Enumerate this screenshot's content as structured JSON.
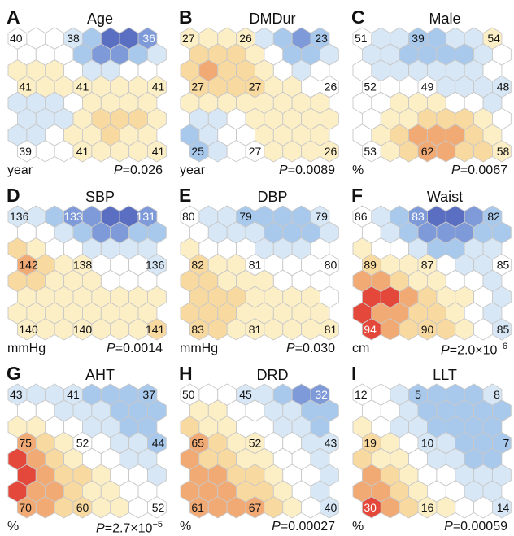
{
  "chart_data": [
    {
      "type": "heatmap",
      "panel": "A",
      "title": "Age",
      "unit": "year",
      "p_prefix": "P",
      "p_value": "=0.026",
      "labels": {
        "tl": "40",
        "tm": "38",
        "tr": "36",
        "ml": "41",
        "mm": "41",
        "mr": "41",
        "bl": "39",
        "bm": "41",
        "br": "41"
      },
      "grid": [
        [
          0,
          0,
          0,
          -1,
          -2,
          -4,
          -4,
          -3
        ],
        [
          0,
          0,
          0,
          -2,
          -3,
          -3,
          -2,
          -1
        ],
        [
          1,
          1,
          1,
          0,
          -1,
          -1,
          0,
          0
        ],
        [
          1,
          1,
          1,
          1,
          1,
          1,
          1,
          1
        ],
        [
          -1,
          -1,
          -1,
          0,
          1,
          1,
          1,
          1
        ],
        [
          -1,
          -1,
          -1,
          1,
          2,
          2,
          2,
          1
        ],
        [
          -1,
          -1,
          0,
          1,
          1,
          2,
          1,
          1
        ],
        [
          0,
          0,
          0,
          1,
          1,
          1,
          1,
          1
        ]
      ]
    },
    {
      "type": "heatmap",
      "panel": "B",
      "title": "DMDur",
      "unit": "year",
      "p_prefix": "P",
      "p_value": "=0.0089",
      "labels": {
        "tl": "27",
        "tm": "26",
        "tr": "23",
        "ml": "27",
        "mm": "27",
        "mr": "26",
        "bl": "25",
        "bm": "27",
        "br": "26"
      },
      "grid": [
        [
          1,
          1,
          1,
          1,
          -1,
          -2,
          -3,
          -2
        ],
        [
          2,
          2,
          2,
          1,
          0,
          -2,
          -2,
          -1
        ],
        [
          2,
          3,
          2,
          2,
          1,
          0,
          -1,
          0
        ],
        [
          2,
          2,
          2,
          2,
          1,
          1,
          0,
          0
        ],
        [
          1,
          1,
          1,
          1,
          1,
          1,
          1,
          1
        ],
        [
          -1,
          -1,
          0,
          1,
          1,
          1,
          1,
          1
        ],
        [
          -2,
          -1,
          0,
          0,
          1,
          1,
          1,
          1
        ],
        [
          -2,
          -1,
          0,
          0,
          1,
          1,
          1,
          1
        ]
      ]
    },
    {
      "type": "heatmap",
      "panel": "C",
      "title": "Male",
      "unit": "%",
      "p_prefix": "P",
      "p_value": "=0.0067",
      "labels": {
        "tl": "51",
        "tm": "39",
        "tr": "54",
        "ml": "52",
        "mm": "49",
        "mr": "48",
        "bl": "53",
        "bm": "62",
        "br": "58"
      },
      "grid": [
        [
          0,
          -1,
          -1,
          -2,
          -2,
          -1,
          -1,
          1
        ],
        [
          -1,
          -1,
          -2,
          -2,
          -2,
          -2,
          -1,
          0
        ],
        [
          0,
          -1,
          -1,
          -1,
          -1,
          -1,
          -1,
          0
        ],
        [
          0,
          0,
          0,
          0,
          -1,
          -1,
          -1,
          -1
        ],
        [
          0,
          0,
          1,
          1,
          1,
          0,
          0,
          -1
        ],
        [
          0,
          1,
          1,
          2,
          2,
          2,
          1,
          0
        ],
        [
          0,
          1,
          2,
          3,
          3,
          3,
          2,
          1
        ],
        [
          0,
          1,
          2,
          3,
          3,
          2,
          2,
          1
        ]
      ]
    },
    {
      "type": "heatmap",
      "panel": "D",
      "title": "SBP",
      "unit": "mmHg",
      "p_prefix": "P",
      "p_value": "=0.0014",
      "labels": {
        "tl": "136",
        "tm": "133",
        "tr": "131",
        "ml": "142",
        "mm": "138",
        "mr": "136",
        "bl": "140",
        "bm": "140",
        "br": "141"
      },
      "grid": [
        [
          -1,
          -1,
          -2,
          -3,
          -3,
          -4,
          -4,
          -3
        ],
        [
          0,
          0,
          -1,
          -2,
          -3,
          -3,
          -2,
          -2
        ],
        [
          2,
          1,
          0,
          0,
          -1,
          -1,
          -1,
          -1
        ],
        [
          3,
          2,
          1,
          1,
          0,
          0,
          0,
          -1
        ],
        [
          2,
          2,
          1,
          1,
          1,
          0,
          0,
          0
        ],
        [
          1,
          1,
          1,
          1,
          1,
          1,
          1,
          1
        ],
        [
          1,
          1,
          1,
          1,
          1,
          1,
          1,
          1
        ],
        [
          1,
          1,
          1,
          1,
          1,
          1,
          1,
          2
        ]
      ]
    },
    {
      "type": "heatmap",
      "panel": "E",
      "title": "DBP",
      "unit": "mmHg",
      "p_prefix": "P",
      "p_value": "=0.030",
      "labels": {
        "tl": "80",
        "tm": "79",
        "tr": "79",
        "ml": "82",
        "mm": "81",
        "mr": "80",
        "bl": "83",
        "bm": "81",
        "br": "81"
      },
      "grid": [
        [
          0,
          -1,
          -1,
          -2,
          -2,
          -2,
          -2,
          -1
        ],
        [
          0,
          -1,
          -1,
          -1,
          -2,
          -2,
          -2,
          -1
        ],
        [
          1,
          0,
          0,
          0,
          -1,
          -1,
          -1,
          0
        ],
        [
          2,
          1,
          1,
          0,
          0,
          0,
          0,
          0
        ],
        [
          2,
          2,
          1,
          1,
          1,
          0,
          0,
          0
        ],
        [
          2,
          2,
          2,
          1,
          1,
          1,
          1,
          0
        ],
        [
          2,
          2,
          2,
          1,
          1,
          1,
          1,
          1
        ],
        [
          2,
          2,
          1,
          1,
          1,
          1,
          1,
          1
        ]
      ]
    },
    {
      "type": "heatmap",
      "panel": "F",
      "title": "Waist",
      "unit": "cm",
      "p_prefix": "P",
      "p_value": "=2.0×10",
      "p_exponent": "−6",
      "labels": {
        "tl": "86",
        "tm": "83",
        "tr": "82",
        "ml": "89",
        "mm": "87",
        "mr": "85",
        "bl": "94",
        "bm": "90",
        "br": "85"
      },
      "grid": [
        [
          0,
          -1,
          -2,
          -3,
          -4,
          -4,
          -3,
          -2
        ],
        [
          0,
          -1,
          -2,
          -3,
          -3,
          -3,
          -2,
          -2
        ],
        [
          1,
          0,
          0,
          -1,
          -2,
          -2,
          -1,
          -1
        ],
        [
          2,
          1,
          1,
          1,
          0,
          -1,
          -1,
          0
        ],
        [
          3,
          3,
          2,
          1,
          1,
          0,
          0,
          -1
        ],
        [
          4,
          4,
          3,
          2,
          1,
          1,
          0,
          -1
        ],
        [
          4,
          3,
          3,
          2,
          2,
          1,
          0,
          -1
        ],
        [
          4,
          3,
          2,
          2,
          2,
          1,
          0,
          -1
        ]
      ]
    },
    {
      "type": "heatmap",
      "panel": "G",
      "title": "AHT",
      "unit": "%",
      "p_prefix": "P",
      "p_value": "=2.7×10",
      "p_exponent": "−5",
      "labels": {
        "tl": "43",
        "tm": "41",
        "tr": "37",
        "ml": "75",
        "mm": "52",
        "mr": "44",
        "bl": "70",
        "bm": "60",
        "br": "52"
      },
      "grid": [
        [
          -1,
          -1,
          -1,
          -1,
          -2,
          -2,
          -2,
          -2
        ],
        [
          0,
          0,
          -1,
          -1,
          -1,
          -2,
          -2,
          -2
        ],
        [
          1,
          1,
          0,
          0,
          -1,
          -1,
          -2,
          -2
        ],
        [
          3,
          2,
          1,
          0,
          0,
          -1,
          -1,
          -2
        ],
        [
          4,
          3,
          2,
          1,
          0,
          0,
          -1,
          -1
        ],
        [
          4,
          3,
          2,
          2,
          1,
          0,
          0,
          -1
        ],
        [
          4,
          3,
          3,
          2,
          1,
          1,
          0,
          0
        ],
        [
          3,
          3,
          2,
          2,
          1,
          1,
          0,
          0
        ]
      ]
    },
    {
      "type": "heatmap",
      "panel": "H",
      "title": "DRD",
      "unit": "%",
      "p_prefix": "P",
      "p_value": "=0.00027",
      "labels": {
        "tl": "50",
        "tm": "45",
        "tr": "32",
        "ml": "65",
        "mm": "52",
        "mr": "43",
        "bl": "61",
        "bm": "67",
        "br": "40"
      },
      "grid": [
        [
          0,
          0,
          0,
          -1,
          -1,
          -2,
          -3,
          -3
        ],
        [
          1,
          1,
          0,
          0,
          -1,
          -1,
          -2,
          -2
        ],
        [
          2,
          1,
          1,
          0,
          0,
          -1,
          -1,
          -2
        ],
        [
          3,
          2,
          1,
          1,
          0,
          0,
          -1,
          -1
        ],
        [
          3,
          2,
          2,
          1,
          1,
          0,
          0,
          -1
        ],
        [
          3,
          3,
          2,
          2,
          1,
          0,
          0,
          -1
        ],
        [
          3,
          3,
          3,
          2,
          2,
          1,
          0,
          -1
        ],
        [
          3,
          3,
          3,
          3,
          2,
          1,
          0,
          -1
        ]
      ]
    },
    {
      "type": "heatmap",
      "panel": "I",
      "title": "LLT",
      "unit": "%",
      "p_prefix": "P",
      "p_value": "=0.00059",
      "labels": {
        "tl": "12",
        "tm": "5",
        "tr": "8",
        "ml": "19",
        "mm": "10",
        "mr": "7",
        "bl": "30",
        "bm": "16",
        "br": "14"
      },
      "grid": [
        [
          0,
          0,
          -1,
          -2,
          -2,
          -2,
          -2,
          -1
        ],
        [
          0,
          0,
          -1,
          -2,
          -2,
          -2,
          -2,
          -2
        ],
        [
          1,
          0,
          -1,
          -1,
          -2,
          -2,
          -2,
          -2
        ],
        [
          2,
          1,
          0,
          -1,
          -1,
          -2,
          -2,
          -2
        ],
        [
          2,
          1,
          1,
          0,
          -1,
          -1,
          -2,
          -2
        ],
        [
          3,
          2,
          1,
          0,
          0,
          -1,
          -1,
          -1
        ],
        [
          3,
          3,
          2,
          1,
          0,
          0,
          -1,
          -1
        ],
        [
          4,
          3,
          2,
          1,
          1,
          0,
          0,
          -1
        ]
      ]
    }
  ],
  "palette": {
    "neg4": "#5b6fc2",
    "neg3": "#7f9ad8",
    "neg2": "#a9c9ec",
    "neg1": "#d7e7f5",
    "zero": "#ffffff",
    "pos1": "#fcefc6",
    "pos2": "#f8d9a0",
    "pos3": "#f2aa74",
    "pos4": "#e3483a",
    "stroke": "#c8c8c8"
  }
}
